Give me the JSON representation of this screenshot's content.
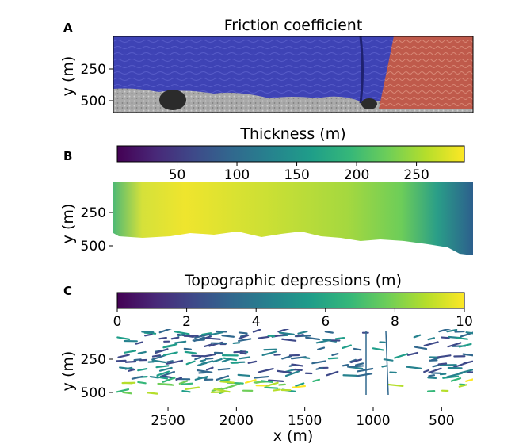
{
  "figure": {
    "panels": [
      {
        "letter": "A",
        "title": "Friction coefficient",
        "ylabel": "y (m)",
        "yticks": [
          "250",
          "500"
        ]
      },
      {
        "letter": "B",
        "title": "Thickness (m)",
        "ylabel": "y (m)",
        "yticks": [
          "250",
          "500"
        ],
        "colorbar_ticks": [
          "50",
          "100",
          "150",
          "200",
          "250"
        ],
        "colorbar_range": [
          0,
          290
        ]
      },
      {
        "letter": "C",
        "title": "Topographic depressions (m)",
        "ylabel": "y (m)",
        "yticks": [
          "250",
          "500"
        ],
        "colorbar_ticks": [
          "0",
          "2",
          "4",
          "6",
          "8",
          "10"
        ],
        "colorbar_range": [
          0,
          10
        ]
      }
    ],
    "xaxis": {
      "label": "x (m)",
      "ticks": [
        "2500",
        "2000",
        "1500",
        "1000",
        "500"
      ]
    }
  },
  "colors": {
    "friction_low": "#3b3fb8",
    "friction_high": "#c0584a",
    "bed_gray": "#a8a8a8",
    "viridis": [
      "#440154",
      "#482878",
      "#3e4989",
      "#31688e",
      "#26828e",
      "#1f9e89",
      "#35b779",
      "#6ece58",
      "#b5de2b",
      "#fde725"
    ]
  }
}
